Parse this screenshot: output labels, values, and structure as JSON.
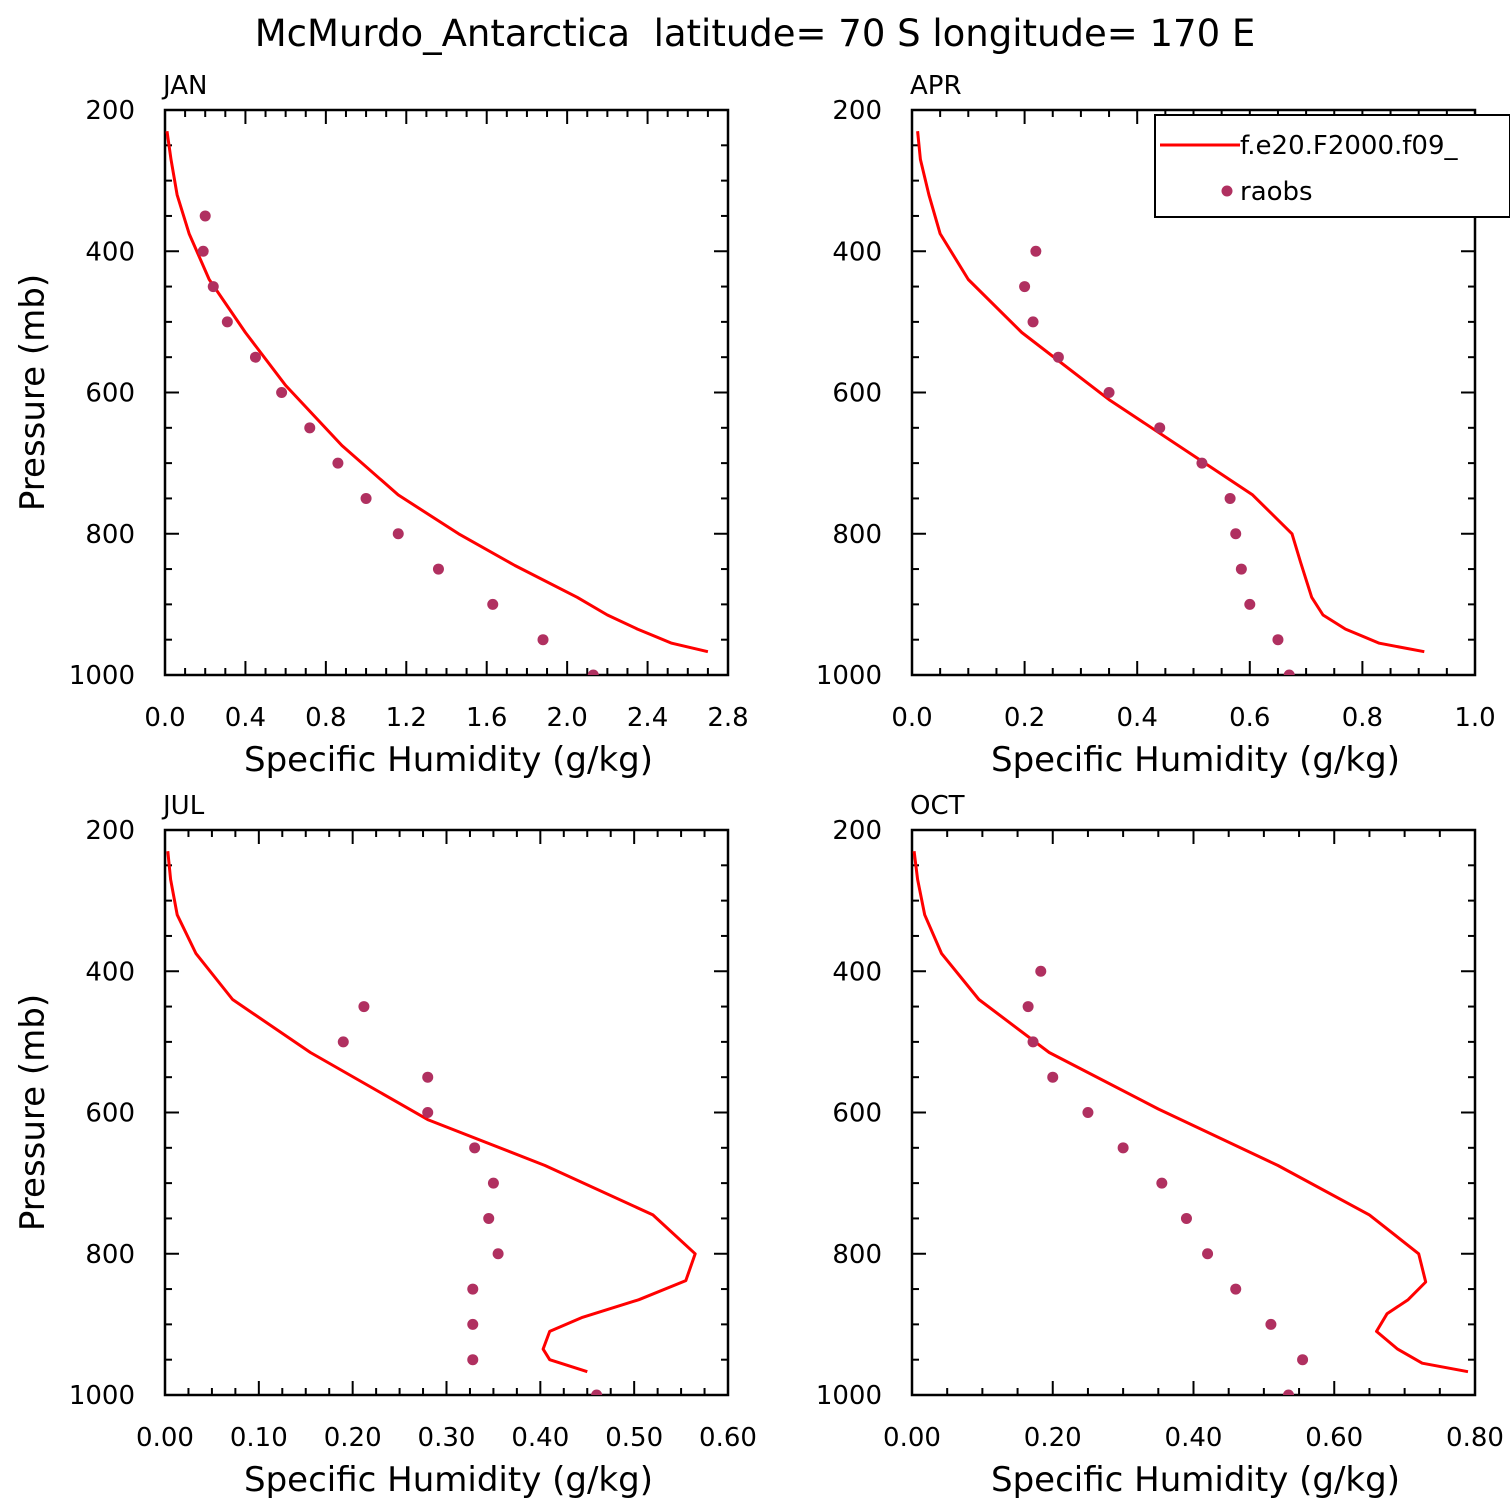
{
  "title": "McMurdo_Antarctica  latitude= 70 S longitude= 170 E",
  "legend": {
    "model_label": "f.e20.F2000.f09_",
    "obs_label": "raobs"
  },
  "colors": {
    "model_line": "#ff0000",
    "obs_marker": "#b03060"
  },
  "chart_data": [
    {
      "type": "line",
      "panel": "JAN",
      "xlabel": "Specific Humidity (g/kg)",
      "ylabel": "Pressure (mb)",
      "xlim": [
        0.0,
        2.8
      ],
      "ylim": [
        200,
        1000
      ],
      "y_inverted": true,
      "xticks": [
        "0.0",
        "0.4",
        "0.8",
        "1.2",
        "1.6",
        "2.0",
        "2.4",
        "2.8"
      ],
      "yticks": [
        "200",
        "400",
        "600",
        "800",
        "1000"
      ],
      "series": [
        {
          "name": "f.e20.F2000.f09_",
          "style": "line",
          "x": [
            0.01,
            0.03,
            0.06,
            0.12,
            0.22,
            0.4,
            0.6,
            0.88,
            1.16,
            1.46,
            1.74,
            2.05,
            2.2,
            2.35,
            2.52,
            2.7
          ],
          "y": [
            230,
            270,
            320,
            375,
            440,
            515,
            590,
            675,
            745,
            800,
            845,
            890,
            915,
            935,
            955,
            967
          ]
        },
        {
          "name": "raobs",
          "style": "scatter",
          "x": [
            0.2,
            0.19,
            0.24,
            0.31,
            0.45,
            0.58,
            0.72,
            0.86,
            1.0,
            1.16,
            1.36,
            1.63,
            1.88,
            2.13
          ],
          "y": [
            350,
            400,
            450,
            500,
            550,
            600,
            650,
            700,
            750,
            800,
            850,
            900,
            950,
            1000
          ]
        }
      ]
    },
    {
      "type": "line",
      "panel": "APR",
      "xlabel": "Specific Humidity (g/kg)",
      "ylabel": "",
      "xlim": [
        0.0,
        1.0
      ],
      "ylim": [
        200,
        1000
      ],
      "y_inverted": true,
      "xticks": [
        "0.0",
        "0.2",
        "0.4",
        "0.6",
        "0.8",
        "1.0"
      ],
      "yticks": [
        "200",
        "400",
        "600",
        "800",
        "1000"
      ],
      "show_legend": true,
      "series": [
        {
          "name": "f.e20.F2000.f09_",
          "style": "line",
          "x": [
            0.01,
            0.015,
            0.03,
            0.05,
            0.1,
            0.195,
            0.35,
            0.52,
            0.605,
            0.675,
            0.69,
            0.7,
            0.71,
            0.73,
            0.77,
            0.83,
            0.91
          ],
          "y": [
            230,
            270,
            320,
            375,
            440,
            515,
            610,
            700,
            745,
            800,
            840,
            865,
            890,
            915,
            935,
            955,
            967
          ]
        },
        {
          "name": "raobs",
          "style": "scatter",
          "x": [
            0.22,
            0.2,
            0.215,
            0.26,
            0.35,
            0.44,
            0.515,
            0.565,
            0.575,
            0.585,
            0.6,
            0.65,
            0.67
          ],
          "y": [
            400,
            450,
            500,
            550,
            600,
            650,
            700,
            750,
            800,
            850,
            900,
            950,
            1000
          ]
        }
      ]
    },
    {
      "type": "line",
      "panel": "JUL",
      "xlabel": "Specific Humidity (g/kg)",
      "ylabel": "Pressure (mb)",
      "xlim": [
        0.0,
        0.6
      ],
      "ylim": [
        200,
        1000
      ],
      "y_inverted": true,
      "xticks": [
        "0.00",
        "0.10",
        "0.20",
        "0.30",
        "0.40",
        "0.50",
        "0.60"
      ],
      "yticks": [
        "200",
        "400",
        "600",
        "800",
        "1000"
      ],
      "series": [
        {
          "name": "f.e20.F2000.f09_",
          "style": "line",
          "x": [
            0.003,
            0.006,
            0.013,
            0.033,
            0.072,
            0.155,
            0.28,
            0.405,
            0.52,
            0.565,
            0.555,
            0.505,
            0.445,
            0.41,
            0.403,
            0.41,
            0.45
          ],
          "y": [
            230,
            270,
            320,
            375,
            440,
            515,
            610,
            675,
            745,
            800,
            838,
            865,
            890,
            910,
            935,
            950,
            967
          ]
        },
        {
          "name": "raobs",
          "style": "scatter",
          "x": [
            0.212,
            0.19,
            0.28,
            0.28,
            0.33,
            0.35,
            0.345,
            0.355,
            0.328,
            0.328,
            0.328,
            0.46
          ],
          "y": [
            450,
            500,
            550,
            600,
            650,
            700,
            750,
            800,
            850,
            900,
            950,
            1000
          ]
        }
      ]
    },
    {
      "type": "line",
      "panel": "OCT",
      "xlabel": "Specific Humidity (g/kg)",
      "ylabel": "",
      "xlim": [
        0.0,
        0.8
      ],
      "ylim": [
        200,
        1000
      ],
      "y_inverted": true,
      "xticks": [
        "0.00",
        "0.20",
        "0.40",
        "0.60",
        "0.80"
      ],
      "yticks": [
        "200",
        "400",
        "600",
        "800",
        "1000"
      ],
      "series": [
        {
          "name": "f.e20.F2000.f09_",
          "style": "line",
          "x": [
            0.003,
            0.008,
            0.018,
            0.042,
            0.095,
            0.195,
            0.35,
            0.52,
            0.65,
            0.72,
            0.73,
            0.705,
            0.675,
            0.66,
            0.69,
            0.725,
            0.79
          ],
          "y": [
            230,
            270,
            320,
            375,
            440,
            515,
            595,
            675,
            745,
            800,
            840,
            865,
            885,
            910,
            935,
            955,
            967
          ]
        },
        {
          "name": "raobs",
          "style": "scatter",
          "x": [
            0.183,
            0.165,
            0.172,
            0.2,
            0.25,
            0.3,
            0.355,
            0.39,
            0.42,
            0.46,
            0.51,
            0.555,
            0.535
          ],
          "y": [
            400,
            450,
            500,
            550,
            600,
            650,
            700,
            750,
            800,
            850,
            900,
            950,
            1000
          ]
        }
      ]
    }
  ]
}
